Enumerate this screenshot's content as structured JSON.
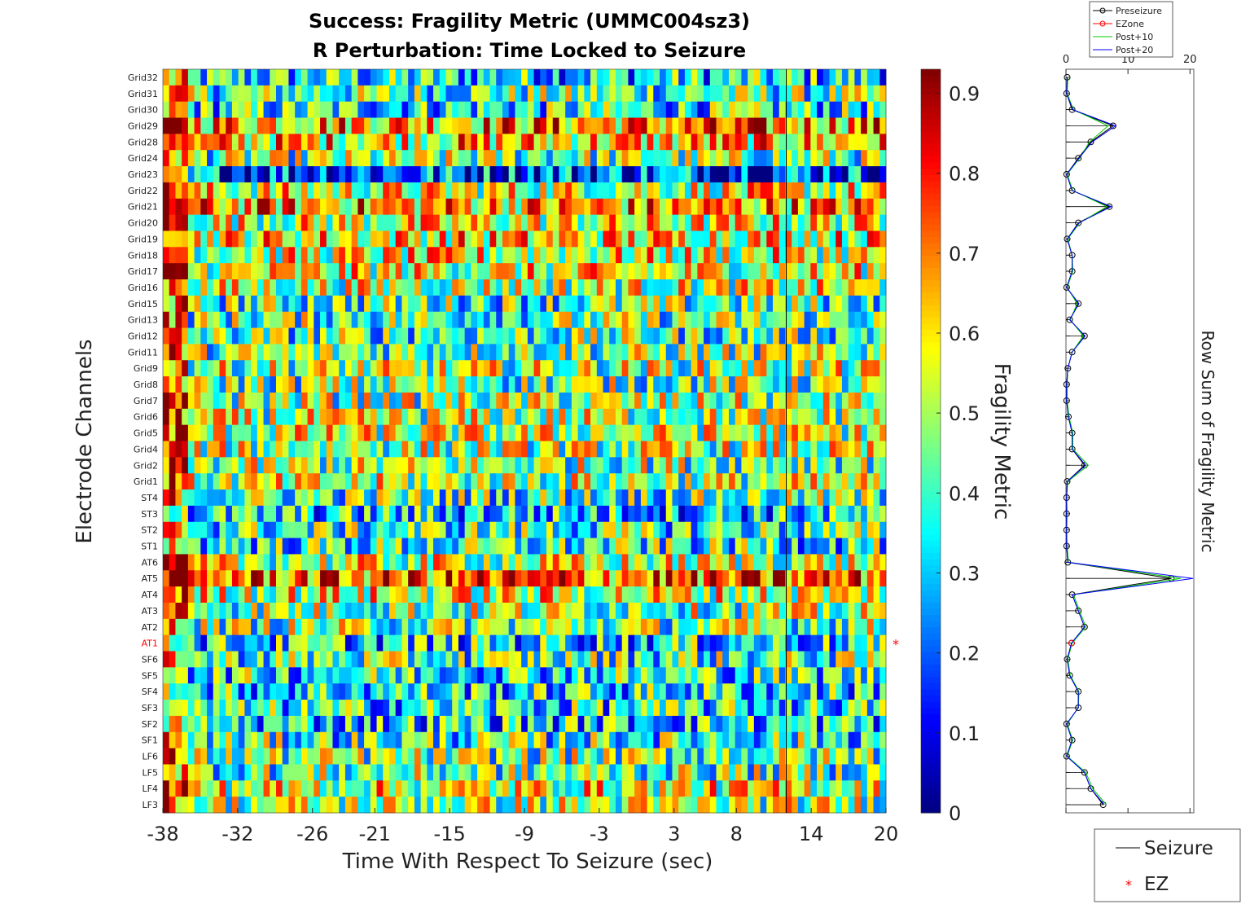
{
  "figure": {
    "title_line1": "Success: Fragility Metric (UMMC004sz3)",
    "title_line2": "R Perturbation:  Time Locked to Seizure",
    "xlabel": "Time With Respect To Seizure (sec)",
    "ylabel": "Electrode Channels",
    "colorbar_label": "Fragility Metric",
    "side_label": "Row Sum of Fragility Metric",
    "ez_marker": "*",
    "accent_colors": {
      "ez_label": "#ff0000",
      "seizure_line": "#000000"
    }
  },
  "chart_data": [
    {
      "type": "heatmap",
      "title": "Success: Fragility Metric (UMMC004sz3) R Perturbation:  Time Locked to Seizure",
      "xlabel": "Time With Respect To Seizure (sec)",
      "ylabel": "Electrode Channels",
      "colormap": "jet",
      "clim": [
        0,
        0.93
      ],
      "colorbar_ticks": [
        0,
        0.1,
        0.2,
        0.3,
        0.4,
        0.5,
        0.6,
        0.7,
        0.8,
        0.9
      ],
      "colorbar_label": "Fragility Metric",
      "xlim": [
        -38,
        20
      ],
      "x_ticks": [
        "-38",
        "-32",
        "-26",
        "-21",
        "-15",
        "-9",
        "-3",
        "3",
        "8",
        "14",
        "20"
      ],
      "x_tick_values": [
        -38,
        -32,
        -26,
        -21,
        -15,
        -9,
        -3,
        3,
        8,
        14,
        20
      ],
      "n_time_windows": 115,
      "seizure_onset_sec": 12,
      "channels": [
        "Grid32",
        "Grid31",
        "Grid30",
        "Grid29",
        "Grid28",
        "Grid24",
        "Grid23",
        "Grid22",
        "Grid21",
        "Grid20",
        "Grid19",
        "Grid18",
        "Grid17",
        "Grid16",
        "Grid15",
        "Grid13",
        "Grid12",
        "Grid11",
        "Grid9",
        "Grid8",
        "Grid7",
        "Grid6",
        "Grid5",
        "Grid4",
        "Grid2",
        "Grid1",
        "ST4",
        "ST3",
        "ST2",
        "ST1",
        "AT6",
        "AT5",
        "AT4",
        "AT3",
        "AT2",
        "AT1",
        "SF6",
        "SF5",
        "SF4",
        "SF3",
        "SF2",
        "SF1",
        "LF6",
        "LF5",
        "LF4",
        "LF3"
      ],
      "ez_channels": [
        "AT1"
      ],
      "channel_mean_fragility": [
        0.34,
        0.42,
        0.36,
        0.68,
        0.62,
        0.45,
        0.22,
        0.55,
        0.66,
        0.55,
        0.6,
        0.55,
        0.55,
        0.52,
        0.42,
        0.44,
        0.42,
        0.46,
        0.5,
        0.45,
        0.48,
        0.5,
        0.52,
        0.5,
        0.48,
        0.5,
        0.42,
        0.32,
        0.4,
        0.38,
        0.52,
        0.72,
        0.55,
        0.48,
        0.46,
        0.34,
        0.42,
        0.38,
        0.35,
        0.36,
        0.34,
        0.4,
        0.45,
        0.44,
        0.55,
        0.5
      ],
      "legend": [
        {
          "label": "Seizure",
          "style": "line",
          "color": "#000000"
        },
        {
          "label": "EZ",
          "style": "marker",
          "color": "#ff0000"
        }
      ]
    },
    {
      "type": "line",
      "orientation": "vertical",
      "ylabel": "Row Sum of Fragility Metric",
      "xlim": [
        0,
        20
      ],
      "x_ticks": [
        0,
        10,
        20
      ],
      "legend_placement": "top",
      "series": [
        {
          "name": "Preseizure",
          "color": "#000000",
          "marker": "circle",
          "values": [
            0.2,
            0.1,
            1.0,
            7.6,
            4.0,
            2.0,
            0.1,
            1.0,
            7.0,
            2.0,
            0.2,
            1.0,
            1.0,
            0.1,
            2.0,
            0.6,
            3.0,
            1.0,
            0.3,
            0.1,
            0.1,
            0.4,
            1.0,
            1.0,
            3.0,
            0.2,
            0.1,
            0.1,
            0.1,
            0.1,
            0.3,
            17.0,
            1.0,
            2.0,
            3.0,
            0.9,
            0.2,
            0.6,
            2.0,
            2.0,
            0.1,
            1.0,
            0.1,
            3.0,
            4.0,
            6.0
          ]
        },
        {
          "name": "EZone",
          "color": "#ff0000",
          "marker": "circle",
          "values": [
            null,
            null,
            null,
            null,
            null,
            null,
            null,
            null,
            null,
            null,
            null,
            null,
            null,
            null,
            null,
            null,
            null,
            null,
            null,
            null,
            null,
            null,
            null,
            null,
            null,
            null,
            null,
            null,
            null,
            null,
            null,
            null,
            null,
            null,
            null,
            0.9,
            null,
            null,
            null,
            null,
            null,
            null,
            null,
            null,
            null,
            null
          ]
        },
        {
          "name": "Post+10",
          "color": "#00cc00",
          "marker": "none",
          "values": [
            0.3,
            0.2,
            1.2,
            6.8,
            3.8,
            2.2,
            0.2,
            1.1,
            6.6,
            2.2,
            0.3,
            1.0,
            1.1,
            0.2,
            1.8,
            0.7,
            2.8,
            1.0,
            0.3,
            0.2,
            0.2,
            0.5,
            1.1,
            1.1,
            3.6,
            0.3,
            0.1,
            0.2,
            0.1,
            0.2,
            0.4,
            18.5,
            1.2,
            2.2,
            3.2,
            1.0,
            0.3,
            0.7,
            2.1,
            2.0,
            0.2,
            1.1,
            0.2,
            3.2,
            4.3,
            6.5
          ]
        },
        {
          "name": "Post+20",
          "color": "#0000ff",
          "marker": "none",
          "values": [
            0.2,
            0.1,
            1.1,
            8.0,
            4.2,
            2.1,
            0.1,
            1.0,
            7.3,
            2.1,
            0.2,
            1.0,
            1.0,
            0.1,
            2.1,
            0.6,
            3.1,
            1.0,
            0.3,
            0.1,
            0.1,
            0.4,
            1.0,
            1.0,
            3.2,
            0.2,
            0.1,
            0.1,
            0.1,
            0.1,
            0.3,
            20.5,
            1.0,
            2.0,
            3.0,
            0.9,
            0.2,
            0.6,
            2.0,
            2.0,
            0.1,
            1.0,
            0.1,
            3.0,
            4.0,
            6.2
          ]
        }
      ]
    }
  ]
}
